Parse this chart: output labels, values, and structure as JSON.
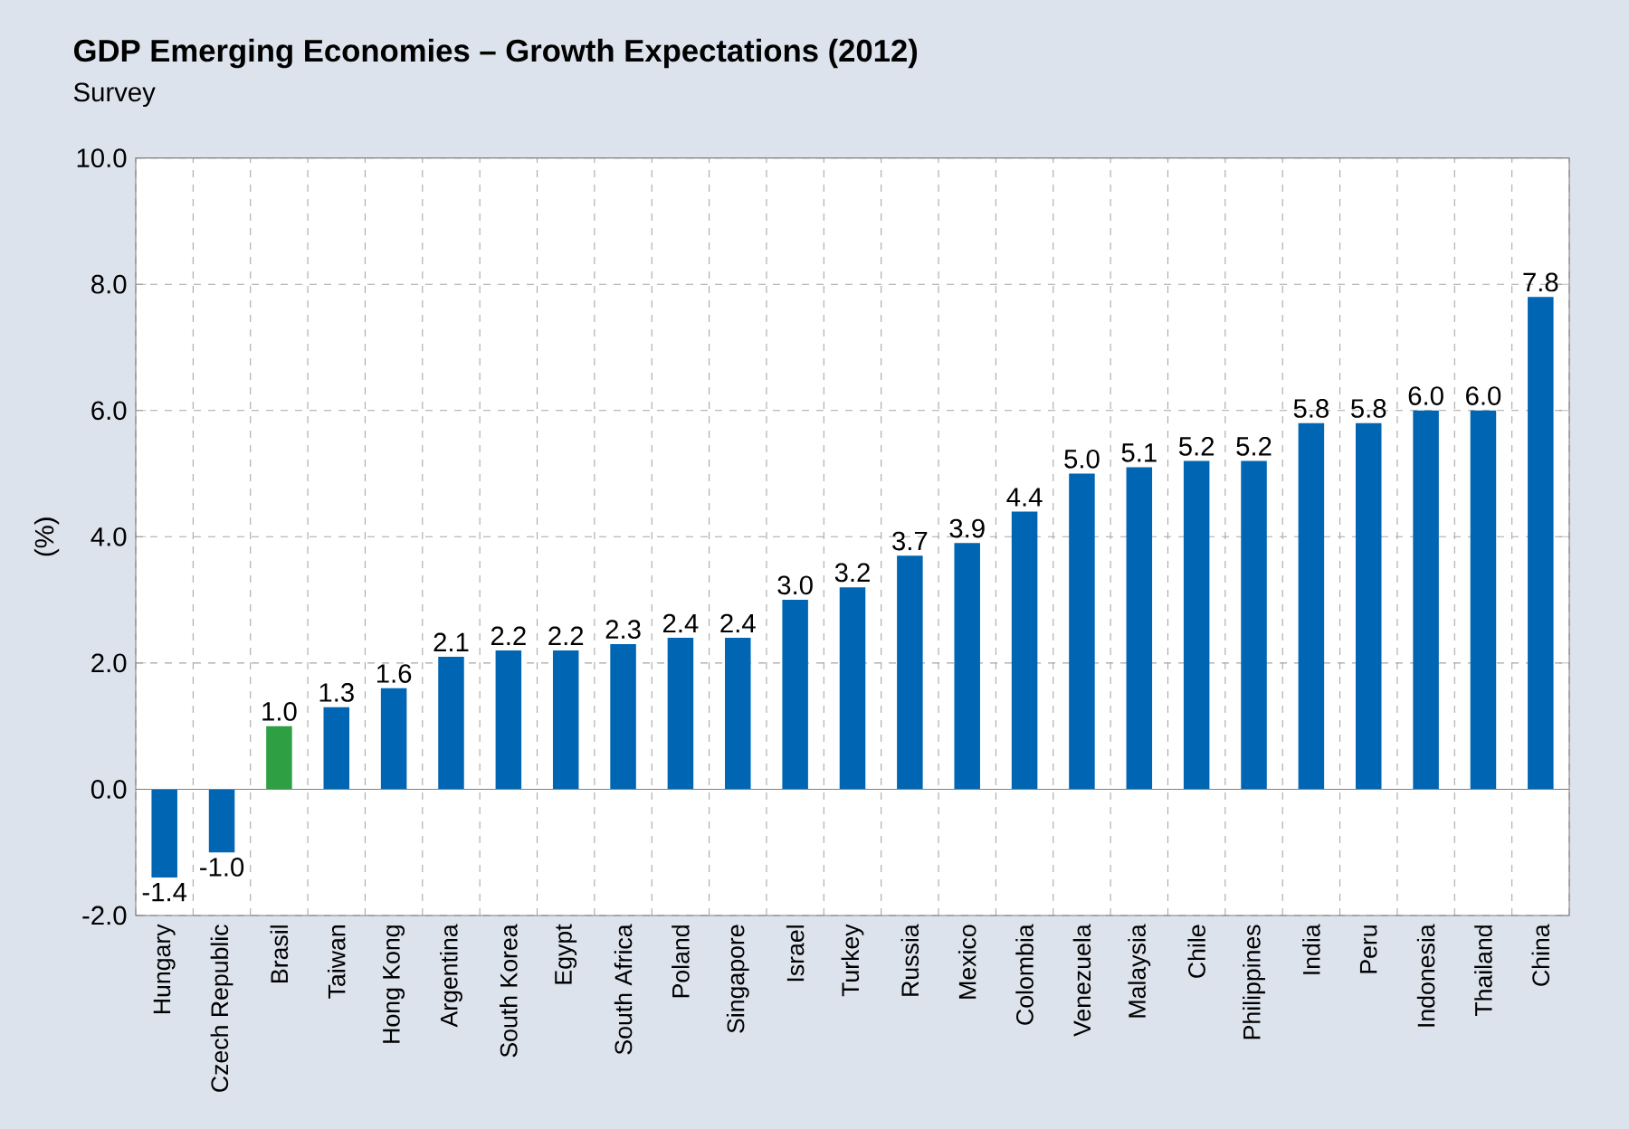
{
  "chart_data": {
    "type": "bar",
    "title": "GDP Emerging Economies – Growth Expectations (2012)",
    "subtitle": "Survey",
    "ylabel": "(%)",
    "categories": [
      "Hungary",
      "Czech Republic",
      "Brasil",
      "Taiwan",
      "Hong Kong",
      "Argentina",
      "South Korea",
      "Egypt",
      "South Africa",
      "Poland",
      "Singapore",
      "Israel",
      "Turkey",
      "Russia",
      "Mexico",
      "Colombia",
      "Venezuela",
      "Malaysia",
      "Chile",
      "Philippines",
      "India",
      "Peru",
      "Indonesia",
      "Thailand",
      "China"
    ],
    "values": [
      -1.4,
      -1.0,
      1.0,
      1.3,
      1.6,
      2.1,
      2.2,
      2.2,
      2.3,
      2.4,
      2.4,
      3.0,
      3.2,
      3.7,
      3.9,
      4.4,
      5.0,
      5.1,
      5.2,
      5.2,
      5.8,
      5.8,
      6.0,
      6.0,
      7.8
    ],
    "value_labels": [
      "-1.4",
      "-1.0",
      "1.0",
      "1.3",
      "1.6",
      "2.1",
      "2.2",
      "2.2",
      "2.3",
      "2.4",
      "2.4",
      "3.0",
      "3.2",
      "3.7",
      "3.9",
      "4.4",
      "5.0",
      "5.1",
      "5.2",
      "5.2",
      "5.8",
      "5.8",
      "6.0",
      "6.0",
      "7.8"
    ],
    "colors": [
      "#0066b3",
      "#0066b3",
      "#2ea043",
      "#0066b3",
      "#0066b3",
      "#0066b3",
      "#0066b3",
      "#0066b3",
      "#0066b3",
      "#0066b3",
      "#0066b3",
      "#0066b3",
      "#0066b3",
      "#0066b3",
      "#0066b3",
      "#0066b3",
      "#0066b3",
      "#0066b3",
      "#0066b3",
      "#0066b3",
      "#0066b3",
      "#0066b3",
      "#0066b3",
      "#0066b3",
      "#0066b3"
    ],
    "ylim": [
      -2,
      10
    ],
    "yticks": [
      {
        "value": -2,
        "label": "-2.0"
      },
      {
        "value": 0,
        "label": "0.0"
      },
      {
        "value": 2,
        "label": "2.0"
      },
      {
        "value": 4,
        "label": "4.0"
      },
      {
        "value": 6,
        "label": "6.0"
      },
      {
        "value": 8,
        "label": "8.0"
      },
      {
        "value": 10,
        "label": "10.0"
      }
    ],
    "grid": true
  }
}
